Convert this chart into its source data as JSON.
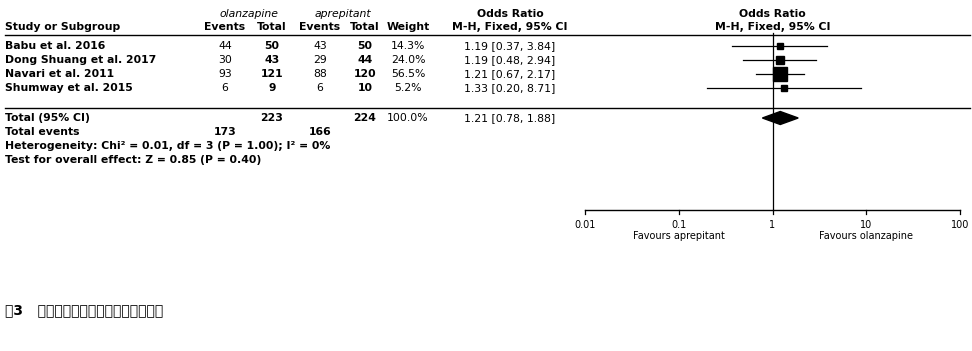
{
  "studies": [
    {
      "name": "Babu et al. 2016",
      "ol_events": "44",
      "ol_total": "50",
      "ap_events": "43",
      "ap_total": "50",
      "weight": "14.3%",
      "or_text": "1.19 [0.37, 3.84]",
      "or": 1.19,
      "ci_low": 0.37,
      "ci_high": 3.84,
      "marker_weight": 14.3
    },
    {
      "name": "Dong Shuang et al. 2017",
      "ol_events": "30",
      "ol_total": "43",
      "ap_events": "29",
      "ap_total": "44",
      "weight": "24.0%",
      "or_text": "1.19 [0.48, 2.94]",
      "or": 1.19,
      "ci_low": 0.48,
      "ci_high": 2.94,
      "marker_weight": 24.0
    },
    {
      "name": "Navari et al. 2011",
      "ol_events": "93",
      "ol_total": "121",
      "ap_events": "88",
      "ap_total": "120",
      "weight": "56.5%",
      "or_text": "1.21 [0.67, 2.17]",
      "or": 1.21,
      "ci_low": 0.67,
      "ci_high": 2.17,
      "marker_weight": 56.5
    },
    {
      "name": "Shumway et al. 2015",
      "ol_events": "6",
      "ol_total": "9",
      "ap_events": "6",
      "ap_total": "10",
      "weight": "5.2%",
      "or_text": "1.33 [0.20, 8.71]",
      "or": 1.33,
      "ci_low": 0.2,
      "ci_high": 8.71,
      "marker_weight": 5.2
    }
  ],
  "total": {
    "ol_total": "223",
    "ap_total": "224",
    "weight": "100.0%",
    "or_text": "1.21 [0.78, 1.88]",
    "or": 1.21,
    "ci_low": 0.78,
    "ci_high": 1.88
  },
  "total_events_ol": "173",
  "total_events_ap": "166",
  "heterogeneity": "Heterogeneity: Chi² = 0.01, df = 3 (P = 1.00); I² = 0%",
  "overall_effect": "Test for overall effect: Z = 0.85 (P = 0.40)",
  "header1_ol": "olanzapine",
  "header1_ap": "aprepitant",
  "header1_or": "Odds Ratio",
  "header2_study": "Study or Subgroup",
  "header2_events": "Events",
  "header2_total": "Total",
  "header2_weight": "Weight",
  "header2_mh": "M-H, Fixed, 95% CI",
  "plot_header1": "Odds Ratio",
  "plot_header2": "M-H, Fixed, 95% CI",
  "x_ticks": [
    0.01,
    0.1,
    1,
    10,
    100
  ],
  "x_tick_labels": [
    "0.01",
    "0.1",
    "1",
    "10",
    "100"
  ],
  "x_label_left": "Favours aprepitant",
  "x_label_right": "Favours olanzapine",
  "caption": "图3   延迟期呕吐完全缓解率比较森林图",
  "bg_color": "#ffffff"
}
